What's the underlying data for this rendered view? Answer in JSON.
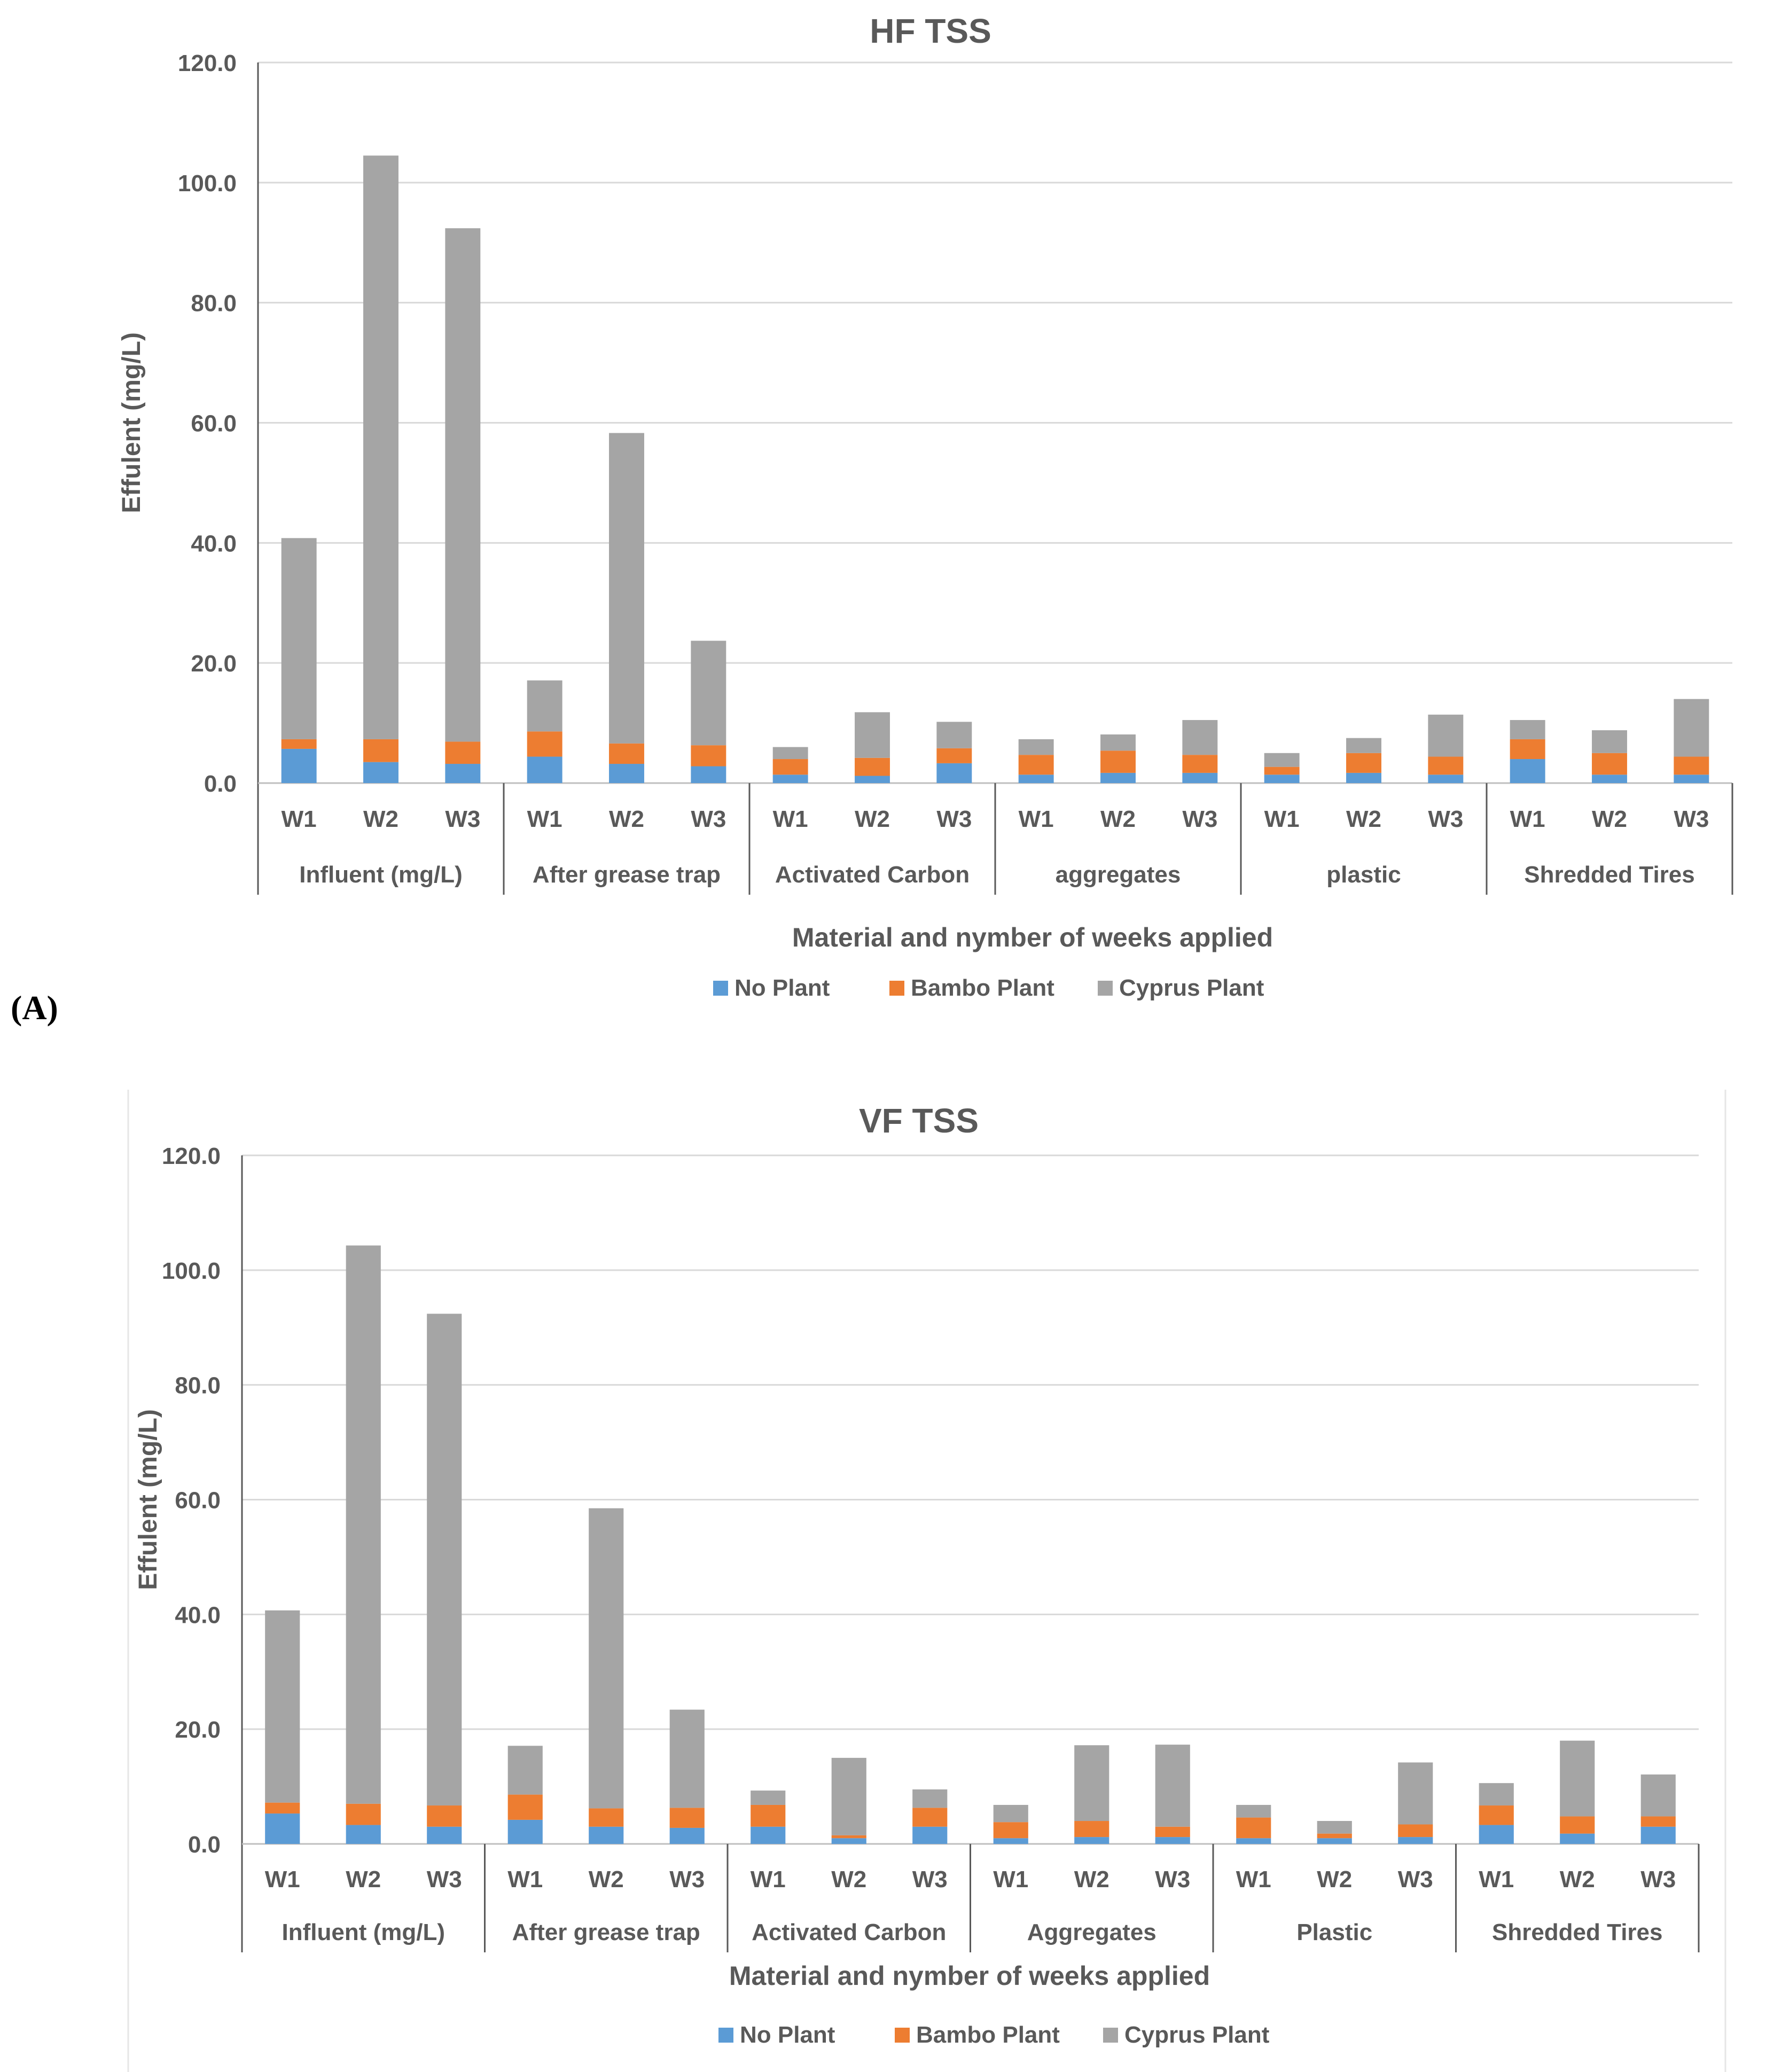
{
  "panel_label_a": "(A)",
  "colors": {
    "no_plant": "#5B9BD5",
    "bambo": "#ED7D31",
    "cyprus": "#A5A5A5",
    "axis_text": "#595959",
    "grid": "#D9D9D9"
  },
  "chart_data": [
    {
      "type": "bar",
      "stacked": true,
      "title": "HF TSS",
      "ylabel": "Effulent (mg/L)",
      "xlabel": "Material and nymber of weeks applied",
      "ylim": [
        0,
        120
      ],
      "yticks": [
        "0.0",
        "20.0",
        "40.0",
        "60.0",
        "80.0",
        "100.0",
        "120.0"
      ],
      "groups": [
        "Influent (mg/L)",
        "After grease trap",
        "Activated Carbon",
        "aggregates",
        "plastic",
        "Shredded Tires"
      ],
      "categories": [
        "W1",
        "W2",
        "W3",
        "W1",
        "W2",
        "W3",
        "W1",
        "W2",
        "W3",
        "W1",
        "W2",
        "W3",
        "W1",
        "W2",
        "W3",
        "W1",
        "W2",
        "W3"
      ],
      "legend": [
        "No Plant",
        "Bambo Plant",
        "Cyprus Plant"
      ],
      "series": [
        {
          "name": "No Plant",
          "values": [
            5.7,
            3.5,
            3.2,
            4.4,
            3.2,
            2.8,
            1.4,
            1.2,
            3.3,
            1.4,
            1.7,
            1.7,
            1.4,
            1.7,
            1.4,
            4.0,
            1.4,
            1.4
          ]
        },
        {
          "name": "Bambo Plant",
          "values": [
            1.6,
            3.8,
            3.7,
            4.2,
            3.4,
            3.5,
            2.6,
            3.0,
            2.5,
            3.3,
            3.7,
            3.0,
            1.3,
            3.3,
            3.0,
            3.3,
            3.6,
            3.0
          ]
        },
        {
          "name": "Cyprus Plant",
          "values": [
            33.5,
            97.2,
            85.5,
            8.5,
            51.7,
            17.4,
            2.0,
            7.6,
            4.4,
            2.6,
            2.7,
            5.8,
            2.3,
            2.5,
            7.0,
            3.2,
            3.8,
            9.6
          ]
        }
      ]
    },
    {
      "type": "bar",
      "stacked": true,
      "title": "VF TSS",
      "ylabel": "Effulent (mg/L)",
      "xlabel": "Material and nymber of weeks applied",
      "ylim": [
        0,
        120
      ],
      "yticks": [
        "0.0",
        "20.0",
        "40.0",
        "60.0",
        "80.0",
        "100.0",
        "120.0"
      ],
      "groups": [
        "Influent (mg/L)",
        "After grease trap",
        "Activated Carbon",
        "Aggregates",
        "Plastic",
        "Shredded Tires"
      ],
      "categories": [
        "W1",
        "W2",
        "W3",
        "W1",
        "W2",
        "W3",
        "W1",
        "W2",
        "W3",
        "W1",
        "W2",
        "W3",
        "W1",
        "W2",
        "W3",
        "W1",
        "W2",
        "W3"
      ],
      "legend": [
        "No Plant",
        "Bambo Plant",
        "Cyprus Plant"
      ],
      "series": [
        {
          "name": "No Plant",
          "values": [
            5.3,
            3.3,
            3.0,
            4.2,
            3.0,
            2.8,
            3.0,
            1.0,
            3.0,
            1.0,
            1.2,
            1.2,
            1.0,
            1.0,
            1.2,
            3.3,
            1.8,
            3.0
          ]
        },
        {
          "name": "Bambo Plant",
          "values": [
            1.9,
            3.7,
            3.7,
            4.4,
            3.2,
            3.5,
            3.8,
            0.5,
            3.3,
            2.8,
            2.8,
            1.8,
            3.6,
            0.8,
            2.2,
            3.4,
            3.0,
            1.8
          ]
        },
        {
          "name": "Cyprus Plant",
          "values": [
            33.5,
            97.3,
            85.7,
            8.5,
            52.3,
            17.1,
            2.5,
            13.5,
            3.2,
            3.0,
            13.2,
            14.3,
            2.2,
            2.2,
            10.8,
            3.9,
            13.2,
            7.3
          ]
        }
      ]
    }
  ]
}
